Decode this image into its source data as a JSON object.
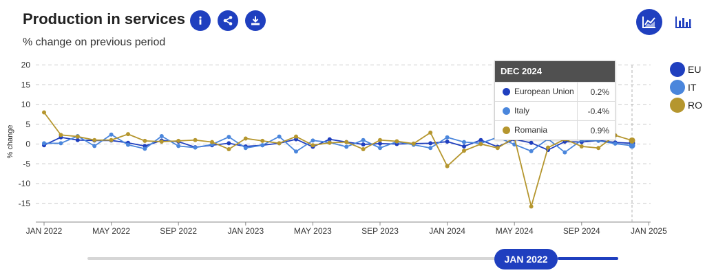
{
  "header": {
    "title": "Production in services",
    "subtitle": "% change on previous period",
    "icons": [
      "info-icon",
      "share-icon",
      "download-icon"
    ],
    "views": [
      "line-chart-icon",
      "bar-chart-icon"
    ]
  },
  "colors": {
    "accent": "#1f3fbf",
    "EU": "#1f3fbf",
    "IT": "#4a86dc",
    "RO": "#b5962e"
  },
  "legend": [
    {
      "label": "EU",
      "color": "#1f3fbf"
    },
    {
      "label": "IT",
      "color": "#4a86dc"
    },
    {
      "label": "RO",
      "color": "#b5962e"
    }
  ],
  "tooltip": {
    "title": "DEC 2024",
    "rows": [
      {
        "name": "European Union",
        "value": "0.2%",
        "color": "#1f3fbf"
      },
      {
        "name": "Italy",
        "value": "-0.4%",
        "color": "#4a86dc"
      },
      {
        "name": "Romania",
        "value": "0.9%",
        "color": "#b5962e"
      }
    ]
  },
  "slider": {
    "label": "JAN 2022"
  },
  "chart_data": {
    "type": "line",
    "ylabel": "% change",
    "ylim": [
      -19,
      20
    ],
    "yticks": [
      20,
      15,
      10,
      5,
      0,
      -5,
      -10,
      -15
    ],
    "x": [
      "2022-01",
      "2022-02",
      "2022-03",
      "2022-04",
      "2022-05",
      "2022-06",
      "2022-07",
      "2022-08",
      "2022-09",
      "2022-10",
      "2022-11",
      "2022-12",
      "2023-01",
      "2023-02",
      "2023-03",
      "2023-04",
      "2023-05",
      "2023-06",
      "2023-07",
      "2023-08",
      "2023-09",
      "2023-10",
      "2023-11",
      "2023-12",
      "2024-01",
      "2024-02",
      "2024-03",
      "2024-04",
      "2024-05",
      "2024-06",
      "2024-07",
      "2024-08",
      "2024-09",
      "2024-10",
      "2024-11",
      "2024-12"
    ],
    "xticks": [
      {
        "label": "JAN 2022",
        "index": 0
      },
      {
        "label": "MAY 2022",
        "index": 4
      },
      {
        "label": "SEP 2022",
        "index": 8
      },
      {
        "label": "JAN 2023",
        "index": 12
      },
      {
        "label": "MAY 2023",
        "index": 16
      },
      {
        "label": "SEP 2023",
        "index": 20
      },
      {
        "label": "JAN 2024",
        "index": 24
      },
      {
        "label": "MAY 2024",
        "index": 28
      },
      {
        "label": "SEP 2024",
        "index": 32
      },
      {
        "label": "JAN 2025",
        "index": 36
      }
    ],
    "series": [
      {
        "name": "EU",
        "color": "#1f3fbf",
        "values": [
          -0.3,
          1.7,
          1.0,
          0.9,
          0.9,
          0.3,
          -0.5,
          0.9,
          0.6,
          -0.8,
          -0.3,
          0.2,
          -0.6,
          -0.3,
          0.2,
          1.2,
          -0.7,
          1.2,
          0.5,
          -0.1,
          0.1,
          0.0,
          0.1,
          0.2,
          0.6,
          -0.6,
          1.0,
          -0.7,
          1.2,
          0.3,
          -1.5,
          0.6,
          0.5,
          0.9,
          0.4,
          0.2
        ]
      },
      {
        "name": "IT",
        "color": "#4a86dc",
        "values": [
          0.2,
          0.2,
          2.0,
          -0.5,
          2.4,
          -0.2,
          -1.2,
          2.0,
          -0.5,
          -0.9,
          -0.1,
          1.8,
          -1.0,
          -0.3,
          1.9,
          -1.9,
          0.9,
          0.4,
          -0.7,
          1.0,
          -1.0,
          0.6,
          -0.2,
          -1.0,
          1.7,
          0.5,
          0.2,
          1.7,
          -0.1,
          -1.8,
          1.3,
          -2.1,
          1.0,
          0.8,
          0.1,
          -0.4
        ]
      },
      {
        "name": "RO",
        "color": "#b5962e",
        "values": [
          8.0,
          2.3,
          1.9,
          1.0,
          1.0,
          2.5,
          0.8,
          0.6,
          0.8,
          1.0,
          0.5,
          -1.3,
          1.4,
          0.8,
          0.2,
          1.9,
          -0.3,
          0.3,
          0.5,
          -1.3,
          1.0,
          0.7,
          0.1,
          2.9,
          -5.6,
          -1.7,
          0.0,
          -1.0,
          1.6,
          -15.8,
          -0.9,
          1.2,
          -0.6,
          -1.0,
          2.2,
          0.9
        ]
      }
    ]
  }
}
